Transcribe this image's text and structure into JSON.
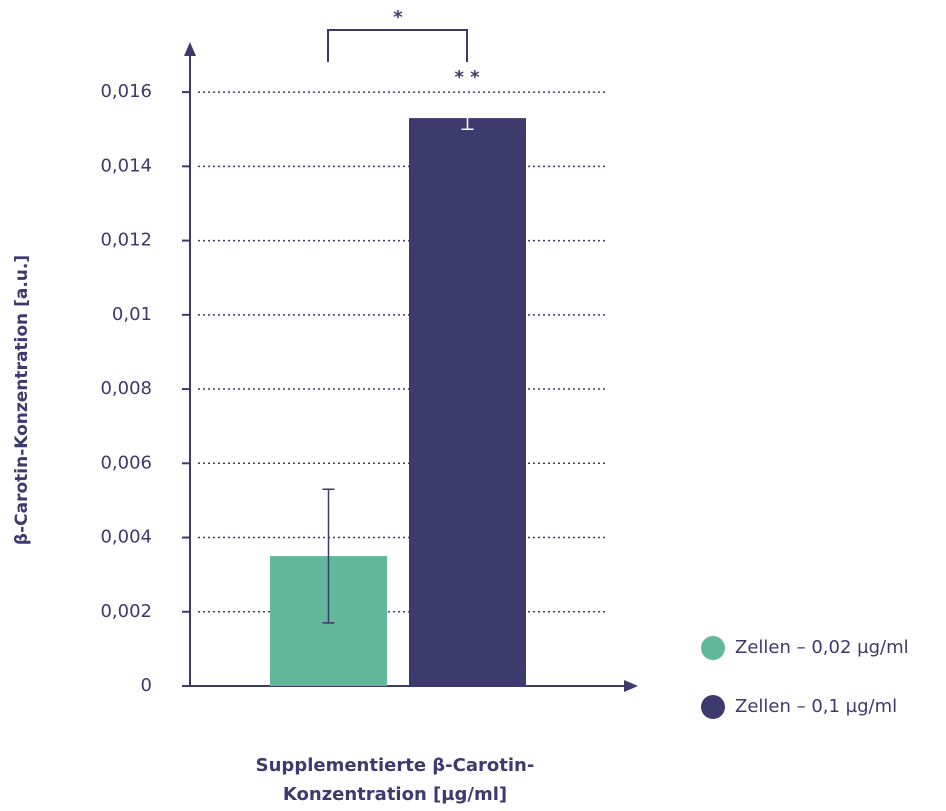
{
  "chart_data": {
    "type": "bar",
    "ylabel": "β-Carotin-Konzentration [a.u.]",
    "xlabel": [
      "Supplementierte β-Carotin-",
      "Konzentration [µg/ml]"
    ],
    "categories": [
      null
    ],
    "series": [
      {
        "name": "Zellen – 0,02 µg/ml",
        "color": "#62b89b",
        "values": [
          0.0035
        ],
        "errors": [
          0.0018
        ]
      },
      {
        "name": "Zellen – 0,1 µg/ml",
        "color": "#3d3a6e",
        "values": [
          0.0153
        ],
        "errors": [
          0.0003
        ]
      }
    ],
    "ylim": [
      0,
      0.017
    ],
    "yticks": [
      0,
      {
        "value": 0.002,
        "label": "0,002"
      },
      {
        "value": 0.004,
        "label": "0,004"
      },
      {
        "value": 0.006,
        "label": "0,006"
      },
      {
        "value": 0.008,
        "label": "0,008"
      },
      {
        "value": 0.01,
        "label": "0,01"
      },
      {
        "value": 0.012,
        "label": "0,012"
      },
      {
        "value": 0.014,
        "label": "0,014"
      },
      {
        "value": 0.016,
        "label": "0,016"
      }
    ],
    "grid": true,
    "annotations": [
      "*",
      "* *"
    ],
    "legend": "right"
  }
}
